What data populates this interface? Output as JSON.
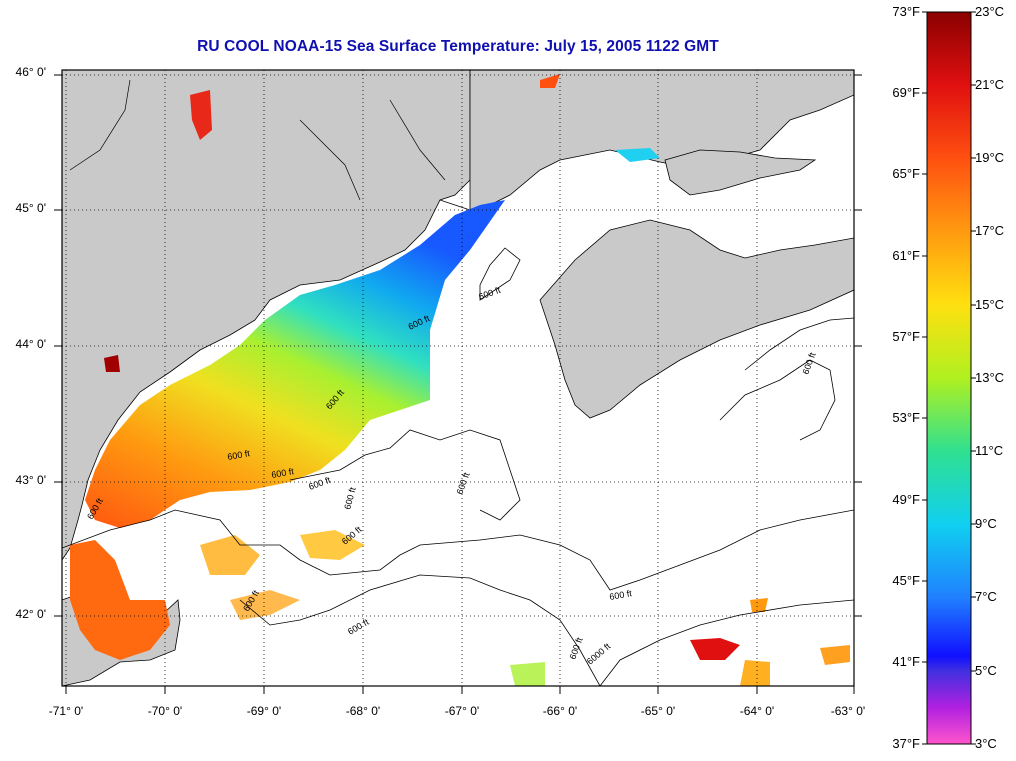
{
  "title": "RU COOL  NOAA-15  Sea Surface Temperature:  July 15, 2005 1122 GMT",
  "map": {
    "lat_ticks": [
      "46° 0'",
      "45° 0'",
      "44° 0'",
      "43° 0'",
      "42° 0'"
    ],
    "lon_ticks": [
      "-71° 0'",
      "-70° 0'",
      "-69° 0'",
      "-68° 0'",
      "-67° 0'",
      "-66° 0'",
      "-65° 0'",
      "-64° 0'",
      "-63° 0'"
    ],
    "contour_labels": [
      "600 ft",
      "600 ft",
      "600 ft",
      "600 ft",
      "600 ft",
      "600 ft",
      "600 ft",
      "600 ft",
      "600 ft",
      "600 ft",
      "600 ft",
      "600 ft",
      "600 ft",
      "600 ft",
      "600 ft",
      "6000 ft"
    ]
  },
  "colorbar": {
    "fahrenheit": [
      "73°F",
      "69°F",
      "65°F",
      "61°F",
      "57°F",
      "53°F",
      "49°F",
      "45°F",
      "41°F",
      "37°F"
    ],
    "celsius": [
      "23°C",
      "21°C",
      "19°C",
      "17°C",
      "15°C",
      "13°C",
      "11°C",
      "9°C",
      "7°C",
      "5°C",
      "3°C"
    ],
    "colors": [
      "#8b0000",
      "#e01010",
      "#ff5010",
      "#ff9a10",
      "#ffe010",
      "#b0f020",
      "#30e090",
      "#10d0f0",
      "#2080ff",
      "#1010ff",
      "#7a30d0",
      "#e020e0",
      "#ff55cc"
    ]
  }
}
